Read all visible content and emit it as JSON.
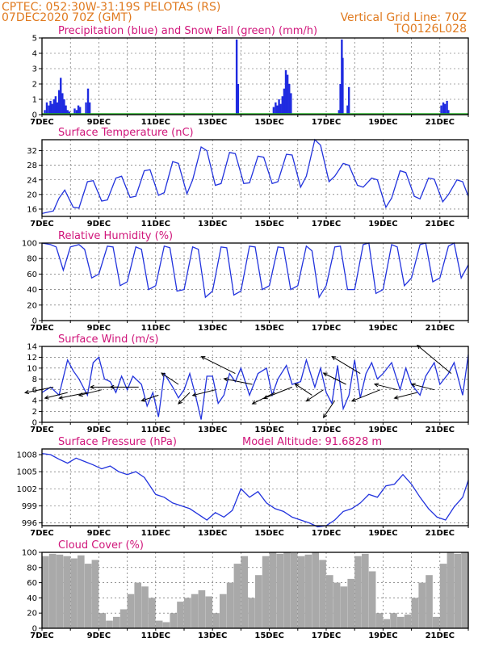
{
  "header": {
    "station": "CPTEC:   052:30W-31:19S   PELOTAS (RS)",
    "run": "07DEC2020 70Z (GMT)",
    "grid_note": "Vertical Grid Line: 70Z",
    "code": "TQ0126L028"
  },
  "colors": {
    "header": "#e07a1f",
    "panel_title": "#d0157a",
    "line": "#2233dd",
    "precip": "#1f2be0",
    "snow": "#22aa22",
    "cloud": "#a9a9a9",
    "wind_arrow": "#000000"
  },
  "chart_data": [
    {
      "type": "bar",
      "title": "Precipitation (blue) and Snow Fall (green) (mm/h)",
      "x_labels": [
        "7DEC",
        "9DEC",
        "11DEC",
        "13DEC",
        "15DEC",
        "17DEC",
        "19DEC",
        "21DEC"
      ],
      "x_range": [
        7,
        22
      ],
      "ylim": [
        0,
        5
      ],
      "yticks": [
        0,
        1,
        2,
        3,
        4,
        5
      ],
      "grid": "dashed",
      "series": [
        {
          "name": "Precipitation",
          "x": [
            7.1,
            7.17,
            7.24,
            7.3,
            7.36,
            7.42,
            7.48,
            7.54,
            7.6,
            7.66,
            7.72,
            7.78,
            7.84,
            7.9,
            7.96,
            8.15,
            8.22,
            8.28,
            8.34,
            8.55,
            8.62,
            8.68,
            13.85,
            13.9,
            15.15,
            15.22,
            15.28,
            15.34,
            15.4,
            15.46,
            15.52,
            15.58,
            15.64,
            15.7,
            15.76,
            17.45,
            17.5,
            17.55,
            17.58,
            17.75,
            17.8,
            21.05,
            21.12,
            21.18,
            21.25,
            21.3
          ],
          "values": [
            0.3,
            0.8,
            0.6,
            0.9,
            0.7,
            1.0,
            1.2,
            0.8,
            1.6,
            2.4,
            1.4,
            1.0,
            0.6,
            0.3,
            0.2,
            0.4,
            0.3,
            0.6,
            0.5,
            0.8,
            1.7,
            0.8,
            4.9,
            2.0,
            0.5,
            0.8,
            0.6,
            1.0,
            0.7,
            1.2,
            1.7,
            2.9,
            2.6,
            2.0,
            1.4,
            0.3,
            2.0,
            4.9,
            3.7,
            0.6,
            1.8,
            0.6,
            0.8,
            0.7,
            0.9,
            0.3
          ]
        },
        {
          "name": "Snow Fall",
          "x": [],
          "values": []
        }
      ]
    },
    {
      "type": "line",
      "title": "Surface Temperature (nC)",
      "x_labels": [
        "7DEC",
        "9DEC",
        "11DEC",
        "13DEC",
        "15DEC",
        "17DEC",
        "19DEC",
        "21DEC"
      ],
      "x_range": [
        7,
        22
      ],
      "ylim": [
        14,
        35
      ],
      "yticks": [
        16,
        20,
        24,
        28,
        32
      ],
      "grid": "dashed",
      "series": [
        {
          "name": "Surface Temperature",
          "x": [
            7.0,
            7.4,
            7.6,
            7.8,
            8.1,
            8.3,
            8.6,
            8.8,
            9.1,
            9.3,
            9.6,
            9.8,
            10.1,
            10.3,
            10.6,
            10.8,
            11.1,
            11.3,
            11.6,
            11.8,
            12.1,
            12.3,
            12.6,
            12.8,
            13.1,
            13.3,
            13.6,
            13.8,
            14.1,
            14.3,
            14.6,
            14.8,
            15.1,
            15.3,
            15.6,
            15.8,
            16.1,
            16.3,
            16.6,
            16.8,
            17.1,
            17.3,
            17.6,
            17.8,
            18.1,
            18.3,
            18.6,
            18.8,
            19.1,
            19.3,
            19.6,
            19.8,
            20.1,
            20.3,
            20.6,
            20.8,
            21.1,
            21.3,
            21.6,
            21.8,
            22.0
          ],
          "values": [
            14.8,
            15.5,
            19.0,
            21.2,
            16.5,
            16.3,
            23.5,
            23.8,
            18.2,
            18.5,
            24.5,
            25.0,
            19.2,
            19.5,
            26.5,
            26.8,
            19.8,
            20.5,
            29.0,
            28.5,
            20.2,
            24.0,
            33.0,
            32.0,
            22.5,
            23.0,
            31.5,
            31.2,
            23.0,
            23.2,
            30.5,
            30.2,
            23.0,
            23.5,
            31.0,
            30.8,
            22.0,
            25.0,
            35.0,
            33.5,
            23.5,
            25.0,
            28.5,
            28.0,
            22.5,
            22.0,
            24.5,
            24.0,
            16.5,
            19.0,
            26.5,
            26.0,
            19.5,
            18.8,
            24.5,
            24.2,
            18.0,
            20.0,
            24.0,
            23.5,
            19.5
          ]
        }
      ]
    },
    {
      "type": "line",
      "title": "Relative Humidity (%)",
      "x_labels": [
        "7DEC",
        "9DEC",
        "11DEC",
        "13DEC",
        "15DEC",
        "17DEC",
        "19DEC",
        "21DEC"
      ],
      "x_range": [
        7,
        22
      ],
      "ylim": [
        0,
        100
      ],
      "yticks": [
        0,
        20,
        40,
        60,
        80,
        100
      ],
      "grid": "dashed",
      "series": [
        {
          "name": "Relative Humidity",
          "x": [
            7.0,
            7.3,
            7.5,
            7.75,
            8.0,
            8.3,
            8.5,
            8.75,
            9.0,
            9.3,
            9.5,
            9.75,
            10.0,
            10.3,
            10.5,
            10.75,
            11.0,
            11.3,
            11.5,
            11.75,
            12.0,
            12.3,
            12.5,
            12.75,
            13.0,
            13.3,
            13.5,
            13.75,
            14.0,
            14.3,
            14.5,
            14.75,
            15.0,
            15.3,
            15.5,
            15.75,
            16.0,
            16.3,
            16.5,
            16.75,
            17.0,
            17.3,
            17.5,
            17.75,
            18.0,
            18.3,
            18.5,
            18.75,
            19.0,
            19.3,
            19.5,
            19.75,
            20.0,
            20.3,
            20.5,
            20.75,
            21.0,
            21.3,
            21.5,
            21.75,
            22.0
          ],
          "values": [
            100,
            98,
            95,
            65,
            95,
            98,
            92,
            55,
            60,
            96,
            95,
            45,
            50,
            95,
            92,
            40,
            45,
            96,
            94,
            38,
            40,
            95,
            92,
            30,
            38,
            95,
            94,
            33,
            38,
            96,
            95,
            40,
            45,
            95,
            94,
            40,
            45,
            96,
            90,
            30,
            45,
            95,
            96,
            40,
            40,
            98,
            100,
            35,
            40,
            98,
            95,
            45,
            55,
            98,
            100,
            50,
            55,
            96,
            100,
            55,
            72
          ]
        }
      ]
    },
    {
      "type": "line",
      "title": "Surface Wind (m/s)",
      "x_labels": [
        "7DEC",
        "9DEC",
        "11DEC",
        "13DEC",
        "15DEC",
        "17DEC",
        "19DEC",
        "21DEC"
      ],
      "x_range": [
        7,
        22
      ],
      "ylim": [
        0,
        14
      ],
      "yticks": [
        0,
        2,
        4,
        6,
        8,
        10,
        12,
        14
      ],
      "grid": "dashed",
      "series": [
        {
          "name": "Surface Wind",
          "x": [
            7.0,
            7.3,
            7.6,
            7.9,
            8.1,
            8.3,
            8.6,
            8.8,
            9.0,
            9.2,
            9.4,
            9.6,
            9.8,
            10.0,
            10.2,
            10.5,
            10.7,
            10.9,
            11.1,
            11.3,
            11.6,
            11.8,
            12.0,
            12.2,
            12.4,
            12.6,
            12.8,
            13.0,
            13.2,
            13.4,
            13.6,
            13.8,
            14.0,
            14.3,
            14.6,
            14.9,
            15.1,
            15.3,
            15.6,
            15.8,
            16.1,
            16.3,
            16.6,
            16.8,
            17.0,
            17.2,
            17.4,
            17.6,
            17.8,
            18.0,
            18.2,
            18.4,
            18.6,
            18.8,
            19.0,
            19.3,
            19.6,
            19.8,
            20.0,
            20.3,
            20.5,
            20.8,
            21.0,
            21.3,
            21.5,
            21.8,
            22.0
          ],
          "values": [
            5.5,
            6.5,
            5.0,
            11.5,
            9.5,
            8.0,
            5.0,
            11.0,
            12.0,
            8.0,
            7.5,
            5.5,
            8.5,
            6.0,
            8.5,
            7.0,
            3.0,
            5.5,
            1.0,
            9.0,
            6.5,
            4.5,
            6.0,
            9.0,
            5.0,
            0.5,
            8.5,
            8.5,
            3.5,
            5.0,
            9.0,
            7.5,
            10.0,
            5.0,
            9.0,
            10.0,
            5.0,
            8.0,
            10.5,
            7.0,
            7.5,
            11.5,
            6.5,
            10.0,
            5.5,
            3.5,
            10.5,
            2.5,
            5.0,
            11.5,
            4.5,
            9.0,
            11.0,
            8.0,
            9.0,
            11.0,
            6.0,
            10.0,
            7.0,
            5.0,
            8.5,
            11.0,
            7.0,
            9.0,
            11.0,
            5.0,
            12.5
          ]
        }
      ],
      "wind_arrows": {
        "x": [
          7.4,
          7.9,
          8.6,
          9.1,
          9.7,
          10.4,
          11.1,
          11.8,
          12.2,
          13.1,
          13.8,
          14.4,
          15.2,
          15.8,
          16.5,
          16.9,
          17.3,
          17.7,
          18.2,
          18.9,
          19.5,
          20.2,
          20.8,
          21.4
        ],
        "speed": [
          6.5,
          5.5,
          5.5,
          6.0,
          6.5,
          6.5,
          5.0,
          7.0,
          5.5,
          6.0,
          9.0,
          7.0,
          5.5,
          6.5,
          5.0,
          6.0,
          4.0,
          7.0,
          9.0,
          6.0,
          6.0,
          5.5,
          6.0,
          9.0
        ],
        "u": [
          -5,
          -4,
          -5,
          -4,
          -5,
          -5,
          -3,
          -3,
          -2,
          -4,
          -6,
          -5,
          -4,
          -5,
          -3,
          -3,
          -2,
          -4,
          -5,
          -5,
          -4,
          -4,
          -4,
          -6
        ],
        "v": [
          -1,
          -1,
          -1,
          -1,
          0,
          0,
          -1,
          2,
          -2,
          -1,
          3,
          1,
          -2,
          -2,
          2,
          -2,
          -3,
          2,
          3,
          -2,
          1,
          -1,
          1,
          5
        ]
      }
    },
    {
      "type": "line",
      "title": "Surface Pressure (hPa)",
      "subtitle": "Model Altitude: 91.6828  m",
      "x_labels": [
        "7DEC",
        "9DEC",
        "11DEC",
        "13DEC",
        "15DEC",
        "17DEC",
        "19DEC",
        "21DEC"
      ],
      "x_range": [
        7,
        22
      ],
      "ylim": [
        995.5,
        1009
      ],
      "yticks": [
        996,
        999,
        1002,
        1005,
        1008
      ],
      "grid": "dashed",
      "series": [
        {
          "name": "Surface Pressure",
          "x": [
            7.0,
            7.3,
            7.6,
            7.9,
            8.2,
            8.5,
            8.8,
            9.1,
            9.4,
            9.7,
            10.0,
            10.3,
            10.6,
            10.8,
            11.0,
            11.3,
            11.6,
            11.9,
            12.2,
            12.5,
            12.8,
            13.1,
            13.4,
            13.7,
            14.0,
            14.3,
            14.6,
            14.9,
            15.2,
            15.5,
            15.8,
            16.1,
            16.4,
            16.7,
            17.0,
            17.3,
            17.6,
            17.9,
            18.2,
            18.5,
            18.8,
            19.1,
            19.4,
            19.7,
            20.0,
            20.3,
            20.6,
            20.9,
            21.2,
            21.5,
            21.8,
            22.0
          ],
          "values": [
            1008.2,
            1008.0,
            1007.2,
            1006.5,
            1007.4,
            1006.8,
            1006.2,
            1005.5,
            1006.0,
            1005.0,
            1004.5,
            1005.0,
            1004.0,
            1002.5,
            1001.0,
            1000.5,
            999.5,
            999.0,
            998.5,
            997.5,
            996.5,
            997.8,
            997.0,
            998.2,
            1002.0,
            1000.5,
            1001.5,
            999.5,
            998.5,
            998.0,
            997.0,
            996.5,
            996.0,
            995.3,
            995.5,
            996.5,
            998.0,
            998.5,
            999.5,
            1001.0,
            1000.5,
            1002.5,
            1002.8,
            1004.5,
            1002.8,
            1000.5,
            998.5,
            997.0,
            996.5,
            998.8,
            1000.5,
            1003.5
          ]
        }
      ]
    },
    {
      "type": "bar",
      "title": "Cloud Cover (%)",
      "x_labels": [
        "7DEC",
        "9DEC",
        "11DEC",
        "13DEC",
        "15DEC",
        "17DEC",
        "19DEC",
        "21DEC"
      ],
      "x_range": [
        7,
        22
      ],
      "ylim": [
        0,
        100
      ],
      "yticks": [
        0,
        20,
        40,
        60,
        80,
        100
      ],
      "grid": "dashed",
      "series": [
        {
          "name": "Cloud Cover",
          "x": [
            7.0,
            7.25,
            7.5,
            7.75,
            8.0,
            8.25,
            8.5,
            8.75,
            9.0,
            9.25,
            9.5,
            9.75,
            10.0,
            10.25,
            10.5,
            10.75,
            11.0,
            11.25,
            11.5,
            11.75,
            12.0,
            12.25,
            12.5,
            12.75,
            13.0,
            13.25,
            13.5,
            13.75,
            14.0,
            14.25,
            14.5,
            14.75,
            15.0,
            15.25,
            15.5,
            15.75,
            16.0,
            16.25,
            16.5,
            16.75,
            17.0,
            17.25,
            17.5,
            17.75,
            18.0,
            18.25,
            18.5,
            18.75,
            19.0,
            19.25,
            19.5,
            19.75,
            20.0,
            20.25,
            20.5,
            20.75,
            21.0,
            21.25,
            21.5,
            21.75
          ],
          "values": [
            95,
            98,
            97,
            95,
            92,
            96,
            85,
            90,
            20,
            10,
            15,
            25,
            45,
            60,
            55,
            40,
            10,
            8,
            20,
            35,
            40,
            45,
            50,
            42,
            20,
            45,
            60,
            85,
            95,
            40,
            70,
            95,
            100,
            98,
            100,
            99,
            95,
            97,
            100,
            90,
            70,
            60,
            55,
            65,
            95,
            98,
            75,
            20,
            12,
            20,
            15,
            18,
            40,
            60,
            70,
            15,
            85,
            100,
            98,
            100
          ]
        }
      ]
    }
  ]
}
